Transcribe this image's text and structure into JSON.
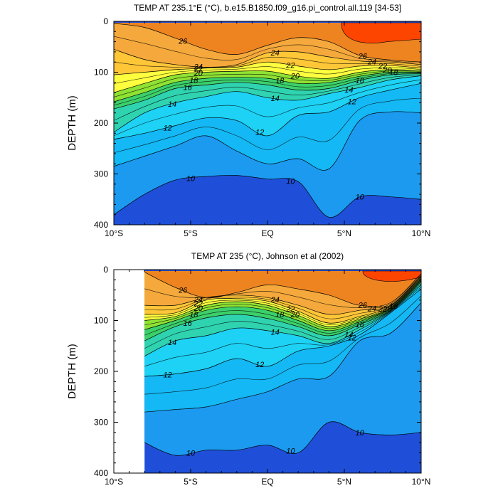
{
  "chart_data": [
    {
      "type": "heatmap",
      "subtype": "filled-contour",
      "title": "TEMP AT 235.1°E (°C), b.e15.B1850.f09_g16.pi_control.all.119 [34-53]",
      "xlabel": "",
      "ylabel": "DEPTH (m)",
      "xlim": [
        -10,
        10
      ],
      "ylim": [
        400,
        0
      ],
      "y_inverted": true,
      "x_ticks": [
        {
          "v": -10,
          "label": "10°S"
        },
        {
          "v": -5,
          "label": "5°S"
        },
        {
          "v": 0,
          "label": "EQ"
        },
        {
          "v": 5,
          "label": "5°N"
        },
        {
          "v": 10,
          "label": "10°N"
        }
      ],
      "y_ticks": [
        0,
        100,
        200,
        300,
        400
      ],
      "data_x_range": [
        -10,
        10
      ],
      "isotherm_depths": {
        "x": [
          -10,
          -8,
          -6,
          -4,
          -2,
          0,
          2,
          4,
          6,
          8,
          10
        ],
        "d26": [
          4,
          12,
          33,
          55,
          65,
          47,
          32,
          40,
          67,
          76,
          80
        ],
        "d24": [
          55,
          75,
          85,
          90,
          85,
          62,
          60,
          70,
          78,
          80,
          85
        ],
        "d22": [
          105,
          100,
          95,
          92,
          90,
          80,
          88,
          95,
          88,
          87,
          92
        ],
        "d20": [
          140,
          122,
          105,
          100,
          98,
          98,
          108,
          112,
          100,
          95,
          97
        ],
        "d18": [
          158,
          140,
          120,
          112,
          110,
          112,
          122,
          120,
          108,
          100,
          100
        ],
        "d16": [
          172,
          155,
          132,
          125,
          120,
          125,
          135,
          132,
          116,
          105,
          103
        ],
        "d14": [
          218,
          180,
          160,
          148,
          138,
          150,
          155,
          142,
          130,
          115,
          107
        ],
        "d12": [
          232,
          220,
          205,
          190,
          195,
          225,
          185,
          178,
          150,
          135,
          122
        ],
        "d11": [
          285,
          265,
          245,
          225,
          255,
          280,
          270,
          290,
          195,
          178,
          180
        ],
        "d10": [
          380,
          340,
          312,
          305,
          303,
          310,
          315,
          385,
          345,
          345,
          350
        ]
      },
      "colormap": [
        "#1f4fd8",
        "#1e78e8",
        "#1c9af0",
        "#14b8f4",
        "#1dd2f4",
        "#22e0e6",
        "#2fd3b0",
        "#3cd06a",
        "#8fe233",
        "#ffff3f",
        "#ffc638",
        "#f5a93c",
        "#f2952e",
        "#ee8420",
        "#fe4500"
      ],
      "contour_labels": [
        "26",
        "24",
        "22",
        "20",
        "18",
        "16",
        "14",
        "12",
        "10"
      ]
    },
    {
      "type": "heatmap",
      "subtype": "filled-contour",
      "title": "TEMP AT 235 (°C), Johnson et al (2002)",
      "xlabel": "",
      "ylabel": "DEPTH (m)",
      "xlim": [
        -10,
        10
      ],
      "ylim": [
        400,
        0
      ],
      "y_inverted": true,
      "x_ticks": [
        {
          "v": -10,
          "label": "10°S"
        },
        {
          "v": -5,
          "label": "5°S"
        },
        {
          "v": 0,
          "label": "EQ"
        },
        {
          "v": 5,
          "label": "5°N"
        },
        {
          "v": 10,
          "label": "10°N"
        }
      ],
      "y_ticks": [
        0,
        100,
        200,
        300,
        400
      ],
      "data_x_range": [
        -8,
        10
      ],
      "isotherm_depths": {
        "x": [
          -8,
          -6,
          -4,
          -2,
          0,
          2,
          4,
          6,
          8,
          10
        ],
        "d26": [
          5,
          35,
          55,
          45,
          30,
          38,
          50,
          70,
          65,
          8
        ],
        "d24": [
          70,
          70,
          55,
          50,
          55,
          70,
          88,
          80,
          70,
          12
        ],
        "d22": [
          88,
          85,
          60,
          57,
          62,
          82,
          105,
          92,
          72,
          15
        ],
        "d20": [
          100,
          92,
          70,
          63,
          70,
          90,
          112,
          97,
          75,
          18
        ],
        "d18": [
          118,
          100,
          80,
          73,
          80,
          100,
          120,
          102,
          77,
          21
        ],
        "d16": [
          140,
          112,
          95,
          88,
          96,
          112,
          130,
          108,
          80,
          24
        ],
        "d14": [
          170,
          140,
          130,
          115,
          120,
          130,
          145,
          118,
          82,
          30
        ],
        "d12": [
          210,
          205,
          195,
          175,
          190,
          160,
          150,
          128,
          85,
          38
        ],
        "d11": [
          280,
          275,
          270,
          255,
          240,
          215,
          210,
          140,
          125,
          65
        ],
        "d10": [
          340,
          365,
          355,
          355,
          345,
          360,
          300,
          320,
          325,
          320
        ]
      },
      "colormap": [
        "#1f4fd8",
        "#1e78e8",
        "#1c9af0",
        "#14b8f4",
        "#1dd2f4",
        "#22e0e6",
        "#2fd3b0",
        "#3cd06a",
        "#8fe233",
        "#ffff3f",
        "#ffc638",
        "#f5a93c",
        "#f2952e",
        "#ee8420",
        "#fe4500"
      ],
      "contour_labels": [
        "26",
        "24",
        "22",
        "20",
        "18",
        "16",
        "14",
        "12",
        "10"
      ]
    }
  ]
}
